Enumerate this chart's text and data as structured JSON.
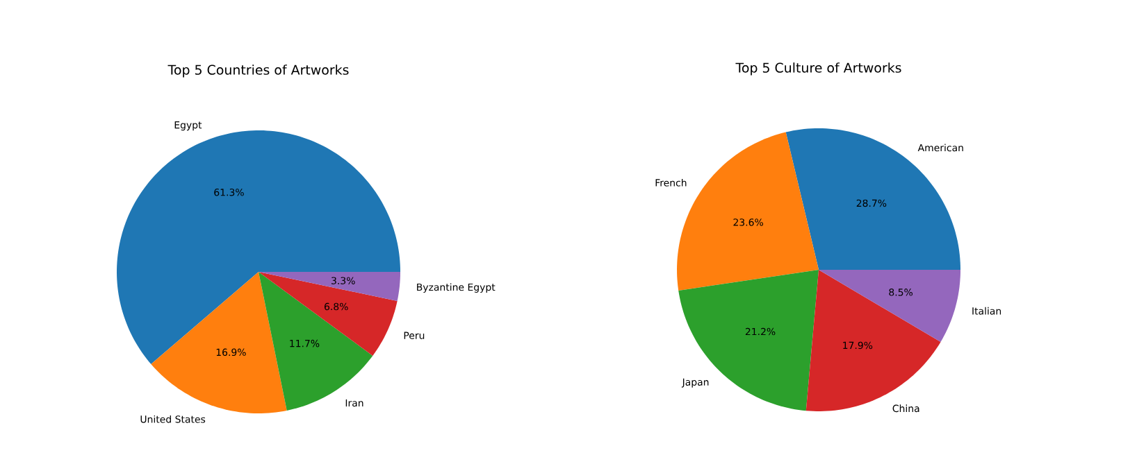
{
  "chart_data": [
    {
      "type": "pie",
      "title": "Top 5 Countries of Artworks",
      "categories": [
        "Egypt",
        "United States",
        "Iran",
        "Peru",
        "Byzantine Egypt"
      ],
      "values": [
        61.3,
        16.9,
        11.7,
        6.8,
        3.3
      ],
      "colors": [
        "#1f77b4",
        "#ff7f0e",
        "#2ca02c",
        "#d62728",
        "#9467bd"
      ],
      "value_labels": [
        "61.3%",
        "16.9%",
        "11.7%",
        "6.8%",
        "3.3%"
      ]
    },
    {
      "type": "pie",
      "title": "Top 5 Culture of Artworks",
      "categories": [
        "American",
        "French",
        "Japan",
        "China",
        "Italian"
      ],
      "values": [
        28.7,
        23.6,
        21.2,
        17.9,
        8.5
      ],
      "colors": [
        "#1f77b4",
        "#ff7f0e",
        "#2ca02c",
        "#d62728",
        "#9467bd"
      ],
      "value_labels": [
        "28.7%",
        "23.6%",
        "21.2%",
        "17.9%",
        "8.5%"
      ]
    }
  ]
}
